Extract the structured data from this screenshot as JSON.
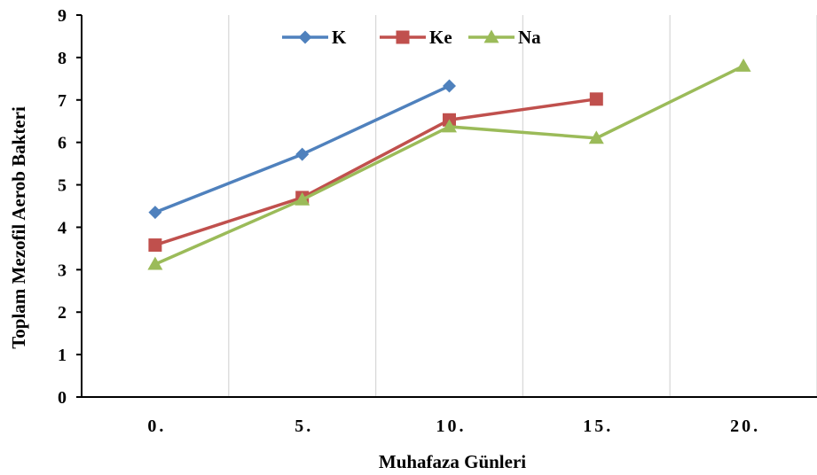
{
  "chart_data": {
    "type": "line",
    "title": "",
    "xlabel": "Muhafaza Günleri",
    "ylabel": "Toplam Mezofil Aerob Bakteri",
    "categories": [
      "0.",
      "5.",
      "10.",
      "15.",
      "20."
    ],
    "ylim": [
      0,
      9
    ],
    "yticks": [
      "0",
      "1",
      "2",
      "3",
      "4",
      "5",
      "6",
      "7",
      "8",
      "9"
    ],
    "grid": "vertical",
    "legend_position": "top",
    "series": [
      {
        "name": "K",
        "color": "#4F81BD",
        "marker": "diamond",
        "values": [
          4.35,
          5.72,
          7.33,
          null,
          null
        ]
      },
      {
        "name": "Ke",
        "color": "#C0504D",
        "marker": "square",
        "values": [
          3.58,
          4.7,
          6.53,
          7.02,
          null
        ]
      },
      {
        "name": "Na",
        "color": "#9BBB59",
        "marker": "triangle",
        "values": [
          3.13,
          4.65,
          6.37,
          6.1,
          7.8
        ]
      }
    ]
  }
}
